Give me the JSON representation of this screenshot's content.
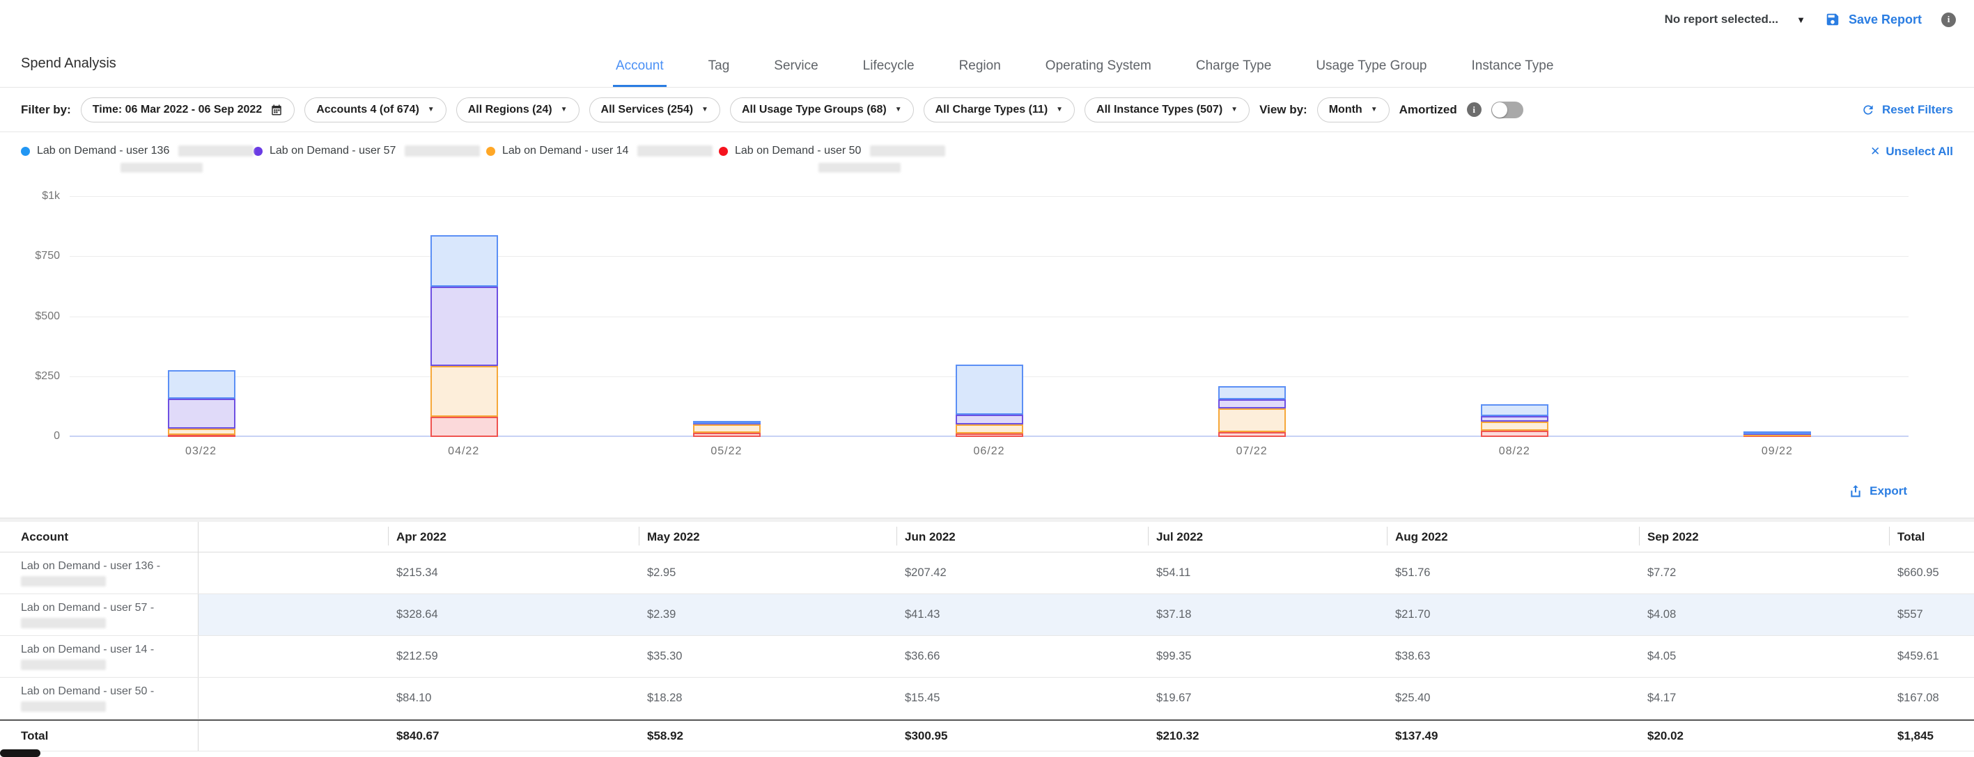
{
  "colors": {
    "accent": "#2a7de2",
    "row_highlight": "#edf3fb",
    "active_tab": "#4a90f5"
  },
  "report_bar": {
    "selector_label": "No report selected...",
    "save_label": "Save Report"
  },
  "page": {
    "title": "Spend Analysis"
  },
  "tabs": [
    {
      "label": "Account",
      "active": true
    },
    {
      "label": "Tag",
      "active": false
    },
    {
      "label": "Service",
      "active": false
    },
    {
      "label": "Lifecycle",
      "active": false
    },
    {
      "label": "Region",
      "active": false
    },
    {
      "label": "Operating System",
      "active": false
    },
    {
      "label": "Charge Type",
      "active": false
    },
    {
      "label": "Usage Type Group",
      "active": false
    },
    {
      "label": "Instance Type",
      "active": false
    }
  ],
  "filter_bar": {
    "label": "Filter by:",
    "time_pill": "Time: 06 Mar 2022 - 06 Sep 2022",
    "dropdown_pills": [
      "Accounts 4 (of 674)",
      "All Regions (24)",
      "All Services (254)",
      "All Usage Type Groups (68)",
      "All Charge Types (11)",
      "All Instance Types (507)"
    ],
    "view_by_label": "View by:",
    "view_by_value": "Month",
    "amortized_label": "Amortized",
    "amortized_on": false,
    "reset_label": "Reset Filters"
  },
  "legend": {
    "unselect_label": "Unselect All",
    "items": [
      {
        "label": "Lab on Demand - user 136",
        "color": "#2196f3",
        "redacted_tail": true,
        "redacted_line2": true
      },
      {
        "label": "Lab on Demand - user 57",
        "color": "#6a3be4",
        "redacted_tail": true,
        "redacted_line2": false
      },
      {
        "label": "Lab on Demand - user 14",
        "color": "#ffa726",
        "redacted_tail": true,
        "redacted_line2": false
      },
      {
        "label": "Lab on Demand - user 50",
        "color": "#f5131e",
        "redacted_tail": true,
        "redacted_line2": true
      }
    ]
  },
  "chart_data": {
    "type": "bar",
    "stacked": true,
    "x": [
      "03/22",
      "04/22",
      "05/22",
      "06/22",
      "07/22",
      "08/22",
      "09/22"
    ],
    "ylim": [
      0,
      1000
    ],
    "yticks": [
      {
        "v": 0,
        "label": "0"
      },
      {
        "v": 250,
        "label": "$250"
      },
      {
        "v": 500,
        "label": "$500"
      },
      {
        "v": 750,
        "label": "$750"
      },
      {
        "v": 1000,
        "label": "$1k"
      }
    ],
    "grid": true,
    "legend_position": "top",
    "series": [
      {
        "name": "Lab on Demand - user 50",
        "fill": "#fbd9da",
        "stroke": "#ef5350",
        "values": [
          8,
          84.1,
          18.28,
          15.45,
          19.67,
          25.4,
          4.17
        ]
      },
      {
        "name": "Lab on Demand - user 14",
        "fill": "#fdeeda",
        "stroke": "#f6a83a",
        "values": [
          27,
          212.59,
          35.3,
          36.66,
          99.35,
          38.63,
          4.05
        ]
      },
      {
        "name": "Lab on Demand - user 57",
        "fill": "#e0daf9",
        "stroke": "#6d50e2",
        "values": [
          125,
          328.64,
          2.39,
          41.43,
          37.18,
          21.7,
          4.08
        ]
      },
      {
        "name": "Lab on Demand - user 136",
        "fill": "#d9e7fc",
        "stroke": "#5b8ff5",
        "values": [
          117,
          215.34,
          2.95,
          207.42,
          54.11,
          51.76,
          7.72
        ]
      }
    ]
  },
  "export_label": "Export",
  "table": {
    "headers": [
      "Account",
      "",
      "Apr 2022",
      "May 2022",
      "Jun 2022",
      "Jul 2022",
      "Aug 2022",
      "Sep 2022",
      "Total"
    ],
    "rows": [
      {
        "account": "Lab on Demand - user 136 -",
        "redacted": true,
        "highlight": false,
        "values": [
          "$215.34",
          "$2.95",
          "$207.42",
          "$54.11",
          "$51.76",
          "$7.72",
          "$660.95"
        ]
      },
      {
        "account": "Lab on Demand - user 57 -",
        "redacted": true,
        "highlight": true,
        "values": [
          "$328.64",
          "$2.39",
          "$41.43",
          "$37.18",
          "$21.70",
          "$4.08",
          "$557"
        ]
      },
      {
        "account": "Lab on Demand - user 14 -",
        "redacted": true,
        "highlight": false,
        "values": [
          "$212.59",
          "$35.30",
          "$36.66",
          "$99.35",
          "$38.63",
          "$4.05",
          "$459.61"
        ]
      },
      {
        "account": "Lab on Demand - user 50 -",
        "redacted": true,
        "highlight": false,
        "values": [
          "$84.10",
          "$18.28",
          "$15.45",
          "$19.67",
          "$25.40",
          "$4.17",
          "$167.08"
        ]
      }
    ],
    "total_row": {
      "label": "Total",
      "values": [
        "$840.67",
        "$58.92",
        "$300.95",
        "$210.32",
        "$137.49",
        "$20.02",
        "$1,845"
      ]
    }
  }
}
